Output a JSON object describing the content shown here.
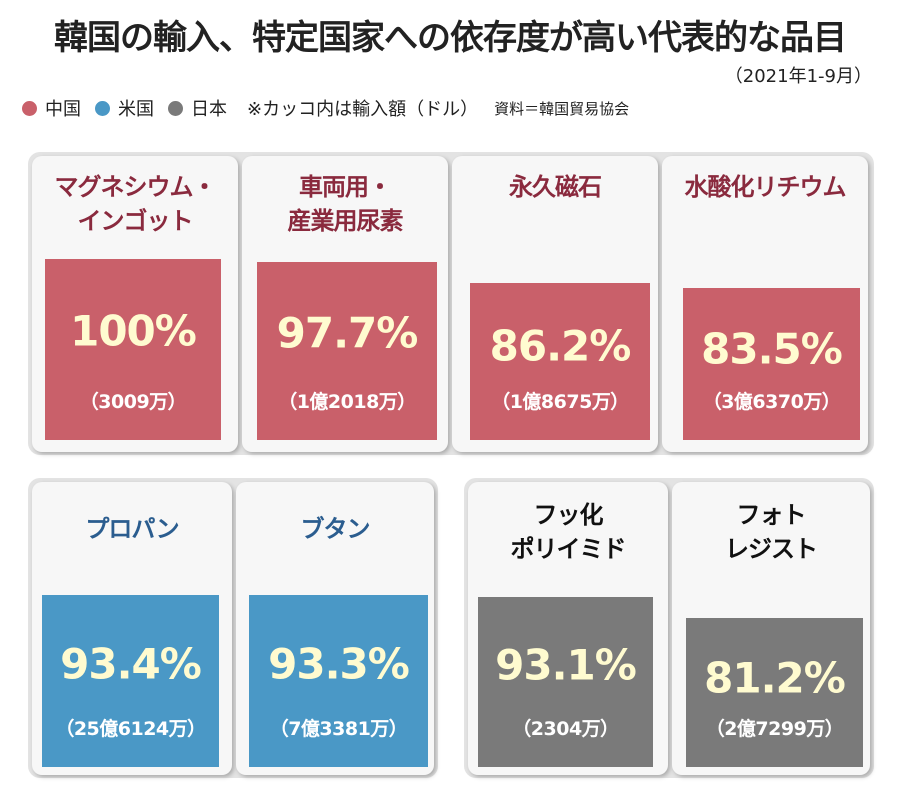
{
  "title": "韓国の輸入、特定国家への依存度が高い代表的な品目",
  "period": "（2021年1-9月）",
  "legend": {
    "items": [
      {
        "label": "中国",
        "color": "#c9606a"
      },
      {
        "label": "米国",
        "color": "#4a98c6"
      },
      {
        "label": "日本",
        "color": "#7a7a7a"
      }
    ],
    "note": "※カッコ内は輸入額（ドル）",
    "source": "資料＝韓国貿易協会"
  },
  "colors": {
    "china": "#c9606a",
    "usa": "#4a98c6",
    "japan": "#7a7a7a",
    "china_text": "#8a2a3e",
    "usa_text": "#2b5d8f",
    "japan_text": "#111111"
  },
  "chart_data": {
    "type": "bar",
    "unit": "%",
    "ylim": [
      0,
      100
    ],
    "items": [
      {
        "country": "中国",
        "name_lines": [
          "マグネシウム・",
          "インゴット"
        ],
        "value": 100,
        "value_label": "100%",
        "amount": "（3009万）"
      },
      {
        "country": "中国",
        "name_lines": [
          "車両用・",
          "産業用尿素"
        ],
        "value": 97.7,
        "value_label": "97.7%",
        "amount": "（1億2018万）"
      },
      {
        "country": "中国",
        "name_lines": [
          "永久磁石"
        ],
        "value": 86.2,
        "value_label": "86.2%",
        "amount": "（1億8675万）"
      },
      {
        "country": "中国",
        "name_lines": [
          "水酸化リチウム"
        ],
        "value": 83.5,
        "value_label": "83.5%",
        "amount": "（3億6370万）"
      },
      {
        "country": "米国",
        "name_lines": [
          "プロパン"
        ],
        "value": 93.4,
        "value_label": "93.4%",
        "amount": "（25億6124万）"
      },
      {
        "country": "米国",
        "name_lines": [
          "ブタン"
        ],
        "value": 93.3,
        "value_label": "93.3%",
        "amount": "（7億3381万）"
      },
      {
        "country": "日本",
        "name_lines": [
          "フッ化",
          "ポリイミド"
        ],
        "value": 93.1,
        "value_label": "93.1%",
        "amount": "（2304万）"
      },
      {
        "country": "日本",
        "name_lines": [
          "フォト",
          "レジスト"
        ],
        "value": 81.2,
        "value_label": "81.2%",
        "amount": "（2億7299万）"
      }
    ]
  }
}
